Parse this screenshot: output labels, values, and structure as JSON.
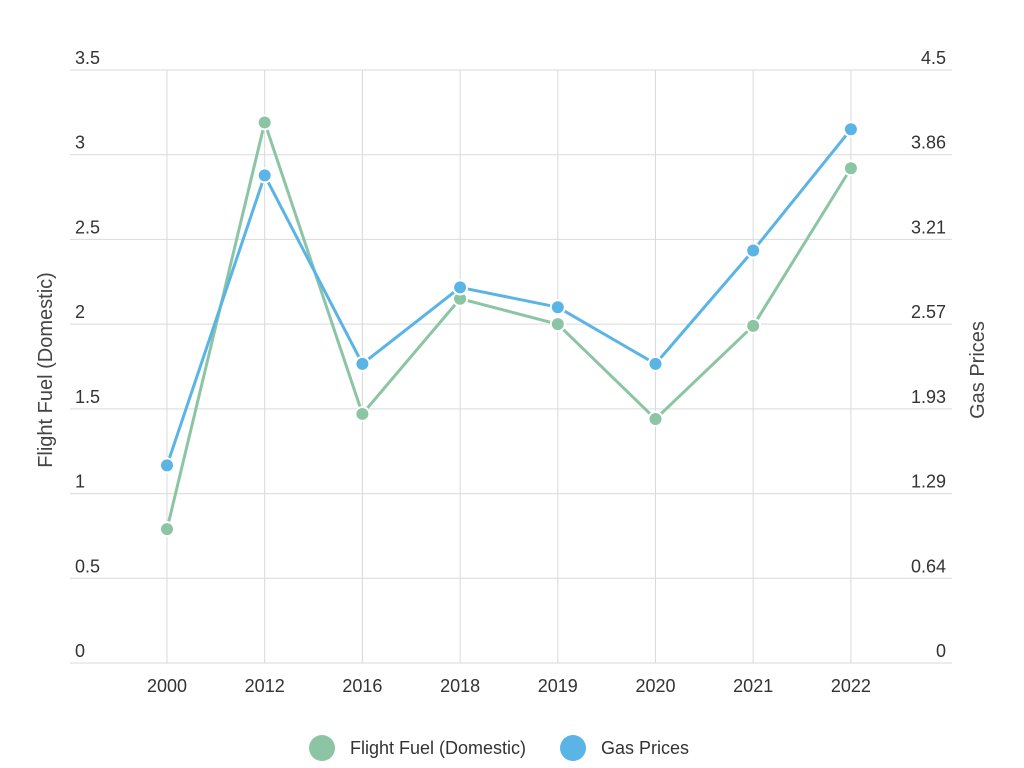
{
  "chart_data": {
    "type": "line",
    "title": "",
    "categories": [
      "2000",
      "2012",
      "2016",
      "2018",
      "2019",
      "2020",
      "2021",
      "2022"
    ],
    "y_left": {
      "label": "Flight Fuel (Domestic)",
      "range": [
        0,
        3.5
      ],
      "ticks": [
        "0",
        "0.5",
        "1",
        "1.5",
        "2",
        "2.5",
        "3",
        "3.5"
      ]
    },
    "y_right": {
      "label": "Gas Prices",
      "range": [
        0,
        4.5
      ],
      "ticks": [
        "0",
        "0.64",
        "1.29",
        "1.93",
        "2.57",
        "3.21",
        "3.86",
        "4.5"
      ]
    },
    "grid": true,
    "legend_position": "bottom",
    "series": [
      {
        "name": "Flight Fuel (Domestic)",
        "axis": "left",
        "color": "#8cc5a3",
        "values": [
          0.79,
          3.19,
          1.47,
          2.15,
          2.0,
          1.44,
          1.99,
          2.92
        ]
      },
      {
        "name": "Gas Prices",
        "axis": "right",
        "color": "#5ab4e5",
        "values": [
          1.5,
          3.7,
          2.27,
          2.85,
          2.7,
          2.27,
          3.13,
          4.05
        ]
      }
    ]
  }
}
